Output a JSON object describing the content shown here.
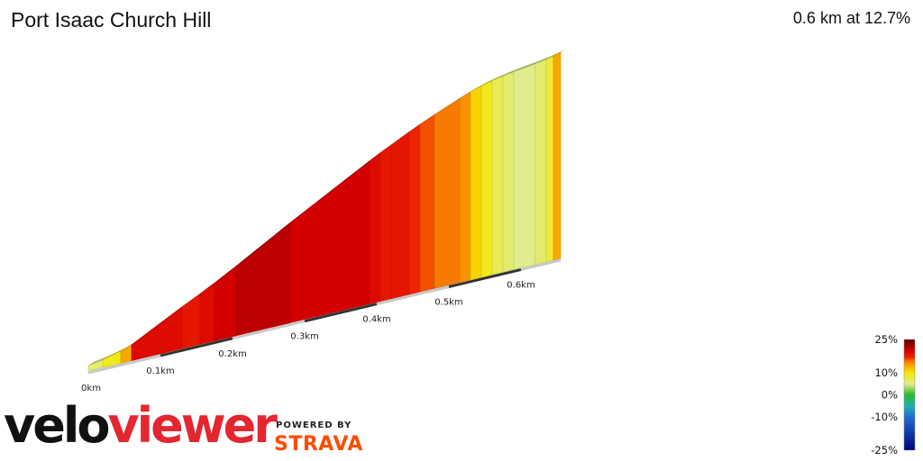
{
  "header": {
    "title": "Port Isaac Church Hill",
    "summary": "0.6 km at 12.7%"
  },
  "branding": {
    "logo_velo": "velo",
    "logo_viewer": "viewer",
    "powered_by": "POWERED BY",
    "strava": "STRAVA"
  },
  "chart_data": {
    "type": "area",
    "title": "Port Isaac Church Hill",
    "subtitle": "0.6 km at 12.7%",
    "x_unit": "km",
    "xlim": [
      0,
      0.64
    ],
    "x_ticks": [
      {
        "value": 0,
        "label": "0km"
      },
      {
        "value": 0.1,
        "label": "0.1km"
      },
      {
        "value": 0.2,
        "label": "0.2km"
      },
      {
        "value": 0.3,
        "label": "0.3km"
      },
      {
        "value": 0.4,
        "label": "0.4km"
      },
      {
        "value": 0.5,
        "label": "0.5km"
      },
      {
        "value": 0.6,
        "label": "0.6km"
      }
    ],
    "segments": [
      {
        "start": 0.0,
        "end": 0.02,
        "gradient": 6
      },
      {
        "start": 0.02,
        "end": 0.045,
        "gradient": 9
      },
      {
        "start": 0.045,
        "end": 0.06,
        "gradient": 13
      },
      {
        "start": 0.06,
        "end": 0.13,
        "gradient": 19
      },
      {
        "start": 0.13,
        "end": 0.155,
        "gradient": 18
      },
      {
        "start": 0.155,
        "end": 0.175,
        "gradient": 19
      },
      {
        "start": 0.175,
        "end": 0.205,
        "gradient": 20
      },
      {
        "start": 0.205,
        "end": 0.255,
        "gradient": 21
      },
      {
        "start": 0.255,
        "end": 0.28,
        "gradient": 21
      },
      {
        "start": 0.28,
        "end": 0.39,
        "gradient": 20
      },
      {
        "start": 0.39,
        "end": 0.405,
        "gradient": 19
      },
      {
        "start": 0.405,
        "end": 0.42,
        "gradient": 18
      },
      {
        "start": 0.42,
        "end": 0.445,
        "gradient": 18
      },
      {
        "start": 0.445,
        "end": 0.46,
        "gradient": 17
      },
      {
        "start": 0.46,
        "end": 0.48,
        "gradient": 16
      },
      {
        "start": 0.48,
        "end": 0.515,
        "gradient": 15
      },
      {
        "start": 0.515,
        "end": 0.53,
        "gradient": 14
      },
      {
        "start": 0.53,
        "end": 0.545,
        "gradient": 11
      },
      {
        "start": 0.545,
        "end": 0.56,
        "gradient": 9
      },
      {
        "start": 0.56,
        "end": 0.575,
        "gradient": 7
      },
      {
        "start": 0.575,
        "end": 0.59,
        "gradient": 6
      },
      {
        "start": 0.59,
        "end": 0.62,
        "gradient": 5
      },
      {
        "start": 0.62,
        "end": 0.635,
        "gradient": 6
      },
      {
        "start": 0.635,
        "end": 0.645,
        "gradient": 8
      },
      {
        "start": 0.645,
        "end": 0.655,
        "gradient": 13
      }
    ],
    "legend": {
      "position": "bottom-right",
      "labels": [
        "25%",
        "10%",
        "0%",
        "-10%",
        "-25%"
      ],
      "values": [
        25,
        10,
        0,
        -10,
        -25
      ],
      "stops": [
        {
          "value": 25,
          "color": "#5c0000"
        },
        {
          "value": 20,
          "color": "#d40000"
        },
        {
          "value": 17,
          "color": "#ee2200"
        },
        {
          "value": 15,
          "color": "#f57c00"
        },
        {
          "value": 13,
          "color": "#f9a800"
        },
        {
          "value": 10,
          "color": "#f6e800"
        },
        {
          "value": 5,
          "color": "#e0ed8c"
        },
        {
          "value": 0,
          "color": "#2fb82f"
        },
        {
          "value": -5,
          "color": "#20b0b0"
        },
        {
          "value": -10,
          "color": "#1f6fd0"
        },
        {
          "value": -25,
          "color": "#000080"
        }
      ]
    }
  }
}
